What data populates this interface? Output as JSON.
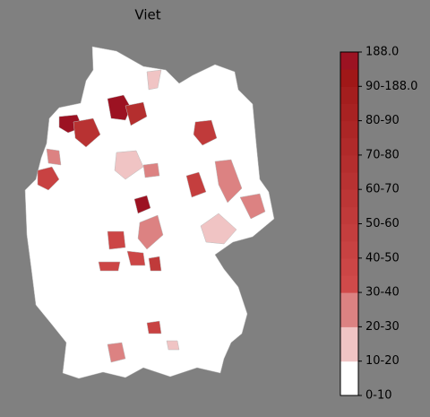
{
  "title": "Viet",
  "colorbar": {
    "labels": [
      "0-10",
      "10-20",
      "20-30",
      "30-40",
      "40-50",
      "50-60",
      "60-70",
      "70-80",
      "80-90",
      "90-188.0",
      "188.0"
    ],
    "colors": [
      "#ffffff",
      "#f0c4c4",
      "#dc8282",
      "#d04a4a",
      "#cc4646",
      "#c84242",
      "#c43e3e",
      "#c03a3a",
      "#bc3636",
      "#b83232",
      "#b42e2e",
      "#b02a2a",
      "#ac2626",
      "#a82222",
      "#a41e1e",
      "#a01818",
      "#9c1222"
    ]
  }
}
